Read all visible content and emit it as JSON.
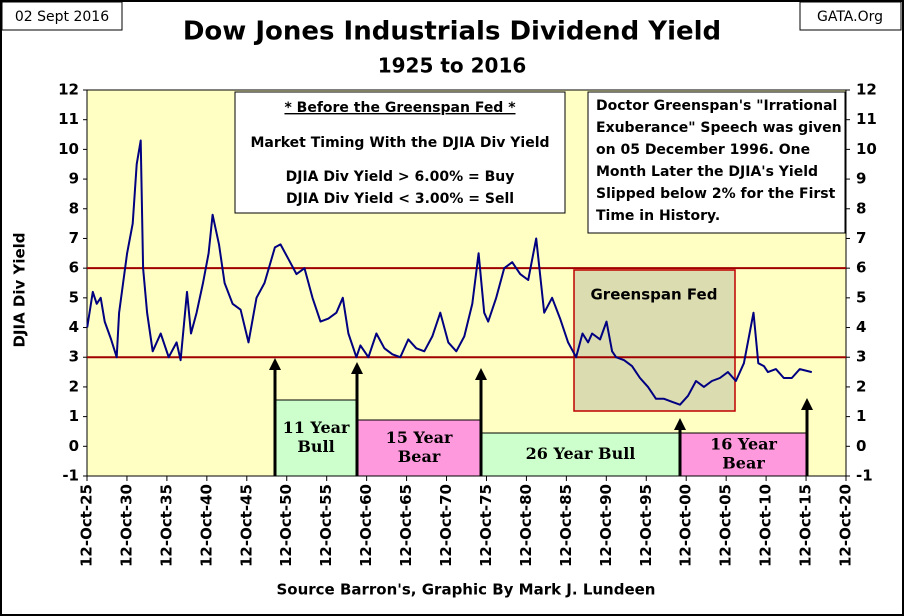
{
  "chart_data": {
    "type": "line",
    "title": "Dow Jones Industrials Dividend Yield",
    "subtitle": "1925 to 2016",
    "date_label": "02 Sept 2016",
    "site_label": "GATA.Org",
    "y_label": "DJIA Div Yield",
    "x_label": "Source Barron's,  Graphic By Mark J. Lundeen",
    "color": "#000080",
    "x": [
      1925.8,
      1926.5,
      1927,
      1927.5,
      1928,
      1928.8,
      1929.5,
      1929.8,
      1930.3,
      1930.8,
      1931.5,
      1932,
      1932.5,
      1932.8,
      1933.3,
      1934,
      1935,
      1936,
      1937,
      1937.5,
      1938.3,
      1938.8,
      1939.5,
      1940.3,
      1941,
      1941.5,
      1942.3,
      1943,
      1944,
      1945,
      1946,
      1947,
      1948,
      1949.3,
      1950,
      1951,
      1952,
      1953,
      1954,
      1955,
      1956,
      1957,
      1957.8,
      1958.5,
      1959.5,
      1960,
      1961,
      1962,
      1963,
      1964,
      1965,
      1966,
      1967,
      1968,
      1969,
      1970,
      1971,
      1972,
      1973,
      1974,
      1974.8,
      1975.5,
      1976,
      1977,
      1978,
      1979,
      1980,
      1981,
      1982,
      1983,
      1984,
      1985,
      1986,
      1987,
      1987.8,
      1988.5,
      1989,
      1990,
      1990.8,
      1991.5,
      1992,
      1993,
      1994,
      1995,
      1996,
      1997,
      1998,
      1999,
      2000,
      2001,
      2002,
      2003,
      2004,
      2005,
      2006,
      2007,
      2008,
      2009.2,
      2009.8,
      2010.5,
      2011,
      2012,
      2013,
      2014,
      2015,
      2016.5
    ],
    "values": [
      4.0,
      5.2,
      4.8,
      5.0,
      4.2,
      3.6,
      3.0,
      4.5,
      5.5,
      6.5,
      7.5,
      9.5,
      10.3,
      6.0,
      4.5,
      3.2,
      3.8,
      3.0,
      3.5,
      2.9,
      5.2,
      3.8,
      4.5,
      5.5,
      6.5,
      7.8,
      6.8,
      5.5,
      4.8,
      4.6,
      3.5,
      5.0,
      5.5,
      6.7,
      6.8,
      6.3,
      5.8,
      6.0,
      5.0,
      4.2,
      4.3,
      4.5,
      5.0,
      3.8,
      3.0,
      3.4,
      3.0,
      3.8,
      3.3,
      3.1,
      3.0,
      3.6,
      3.3,
      3.2,
      3.7,
      4.5,
      3.5,
      3.2,
      3.7,
      4.8,
      6.5,
      4.5,
      4.2,
      5.0,
      6.0,
      6.2,
      5.8,
      5.6,
      7.0,
      4.5,
      5.0,
      4.3,
      3.5,
      3.0,
      3.8,
      3.5,
      3.8,
      3.6,
      4.2,
      3.2,
      3.0,
      2.9,
      2.7,
      2.3,
      2.0,
      1.6,
      1.6,
      1.5,
      1.4,
      1.7,
      2.2,
      2.0,
      2.2,
      2.3,
      2.5,
      2.2,
      2.8,
      4.5,
      2.8,
      2.7,
      2.5,
      2.6,
      2.3,
      2.3,
      2.6,
      2.5
    ],
    "xlim": [
      1925.78,
      2020.78
    ],
    "xticks": [
      {
        "value": 1925.78,
        "label": "12-Oct-25"
      },
      {
        "value": 1930.78,
        "label": "12-Oct-30"
      },
      {
        "value": 1935.78,
        "label": "12-Oct-35"
      },
      {
        "value": 1940.78,
        "label": "12-Oct-40"
      },
      {
        "value": 1945.78,
        "label": "12-Oct-45"
      },
      {
        "value": 1950.78,
        "label": "12-Oct-50"
      },
      {
        "value": 1955.78,
        "label": "12-Oct-55"
      },
      {
        "value": 1960.78,
        "label": "12-Oct-60"
      },
      {
        "value": 1965.78,
        "label": "12-Oct-65"
      },
      {
        "value": 1970.78,
        "label": "12-Oct-70"
      },
      {
        "value": 1975.78,
        "label": "12-Oct-75"
      },
      {
        "value": 1980.78,
        "label": "12-Oct-80"
      },
      {
        "value": 1985.78,
        "label": "12-Oct-85"
      },
      {
        "value": 1990.78,
        "label": "12-Oct-90"
      },
      {
        "value": 1995.78,
        "label": "12-Oct-95"
      },
      {
        "value": 2000.78,
        "label": "12-Oct-00"
      },
      {
        "value": 2005.78,
        "label": "12-Oct-05"
      },
      {
        "value": 2010.78,
        "label": "12-Oct-10"
      },
      {
        "value": 2015.78,
        "label": "12-Oct-15"
      },
      {
        "value": 2020.78,
        "label": "12-Oct-20"
      }
    ],
    "ylim": [
      -1,
      12
    ],
    "yticks": [
      -1,
      0,
      1,
      2,
      3,
      4,
      5,
      6,
      7,
      8,
      9,
      10,
      11,
      12
    ],
    "reference_lines": [
      6,
      3
    ],
    "reference_color": "#a00000",
    "rules_box": [
      "* Before the Greenspan Fed *",
      "Market Timing With the DJIA Div Yield",
      "DJIA Div Yield > 6.00% = Buy",
      "DJIA Div Yield < 3.00% = Sell"
    ],
    "speech_box": [
      "Doctor Greenspan's \"Irrational",
      "Exuberance\" Speech was given",
      "on 05 December 1996.  One",
      "Month Later the DJIA's Yield",
      "Slipped below 2% for the First",
      "Time in History."
    ],
    "greenspan_label": "Greenspan Fed",
    "periods": [
      [
        "11 Year",
        "Bull"
      ],
      [
        "15 Year",
        "Bear"
      ],
      [
        "26 Year Bull"
      ],
      [
        "16 Year",
        "Bear"
      ]
    ]
  }
}
